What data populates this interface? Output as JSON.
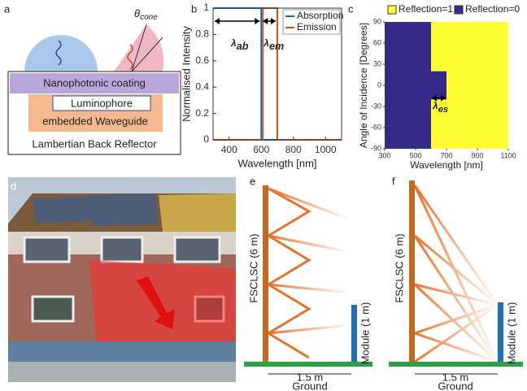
{
  "panel_labels": [
    "a",
    "b",
    "c",
    "d",
    "e",
    "f"
  ],
  "panel_a": {
    "coating": "Nanophotonic coating",
    "luminophore": "Luminophore",
    "waveguide": "embedded Waveguide",
    "reflector": "Lambertian Back Reflector",
    "angle": {
      "symbol": "θ",
      "subscript": "cone"
    }
  },
  "chart_data": [
    {
      "type": "line",
      "xlabel": "Wavelength [nm]",
      "ylabel": "Normalised Intensity",
      "xlim": [
        300,
        1100
      ],
      "xticks": [
        400,
        600,
        800,
        1000
      ],
      "ylim": [
        0,
        1
      ],
      "yticks": [
        0,
        0.2,
        0.4,
        0.6,
        0.8,
        1
      ],
      "legend": "upper right",
      "series": [
        {
          "name": "Absorption",
          "color": "#0072bd",
          "x": [
            300,
            600,
            600,
            1100
          ],
          "values": [
            1,
            1,
            0,
            0
          ]
        },
        {
          "name": "Emission",
          "color": "#d95319",
          "x": [
            300,
            610,
            610,
            700,
            700,
            1100
          ],
          "values": [
            0,
            0,
            1,
            1,
            0,
            0
          ]
        }
      ],
      "annotations": [
        {
          "symbol": "λ",
          "subscript": "ab"
        },
        {
          "symbol": "λ",
          "subscript": "em"
        }
      ]
    },
    {
      "type": "heatmap",
      "xlabel": "Wavelength [nm]",
      "ylabel": "Angle of Incidence [Degrees]",
      "xlim": [
        300,
        1100
      ],
      "xticks": [
        300,
        500,
        700,
        900,
        1100
      ],
      "ylim": [
        -90,
        90
      ],
      "yticks": [
        -90,
        -60,
        -30,
        0,
        30,
        60,
        90
      ],
      "legend_items": [
        {
          "name": "Reflection=1",
          "color": "#ffff33",
          "value": 1
        },
        {
          "name": "Reflection=0",
          "color": "#352a87",
          "value": 0
        }
      ],
      "regions": [
        {
          "x": [
            300,
            1100
          ],
          "y": [
            -90,
            90
          ],
          "value": 1
        },
        {
          "x": [
            300,
            600
          ],
          "y": [
            -90,
            90
          ],
          "value": 0
        },
        {
          "x": [
            600,
            700
          ],
          "y": [
            -20,
            20
          ],
          "value": 0
        }
      ],
      "annotations": [
        {
          "symbol": "λ",
          "subscript": "es"
        }
      ]
    }
  ],
  "panel_e": {
    "collector": "FSCLSC (6 m)",
    "module": "Module (1 m)",
    "distance": "1.5 m",
    "ground": "Ground"
  },
  "panel_f": {
    "collector": "FSCLSC (6 m)",
    "module": "Module (1 m)",
    "distance": "1.5 m",
    "ground": "Ground"
  }
}
